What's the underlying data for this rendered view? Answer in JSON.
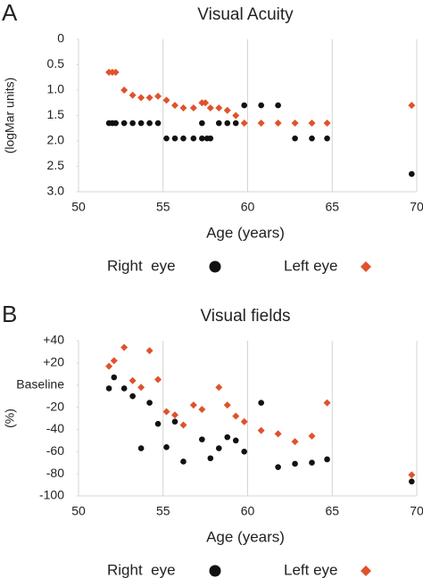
{
  "chart_data": [
    {
      "type": "scatter",
      "panel": "A",
      "title": "Visual Acuity",
      "x_label": "Age (years)",
      "y_label": "(logMar units)",
      "xlim": [
        50,
        70
      ],
      "xticks": [
        50,
        55,
        60,
        65,
        70
      ],
      "ylim": [
        0,
        3
      ],
      "y_inverted": true,
      "yticks": [
        0,
        0.5,
        {
          "value": 1,
          "label": "1.0"
        },
        1.5,
        {
          "value": 2,
          "label": "2.0"
        },
        2.5,
        {
          "value": 3,
          "label": "3.0"
        }
      ],
      "grid": "x",
      "series": [
        {
          "name": "Right  eye",
          "color": "#111111",
          "marker": "circle",
          "x": [
            51.8,
            52.0,
            52.2,
            52.7,
            53.2,
            53.7,
            54.2,
            54.7,
            55.2,
            55.7,
            56.2,
            56.8,
            57.3,
            57.3,
            57.6,
            57.8,
            58.3,
            58.8,
            59.3,
            59.8,
            60.8,
            61.8,
            62.8,
            63.8,
            64.7,
            69.7
          ],
          "values": [
            1.65,
            1.65,
            1.65,
            1.65,
            1.65,
            1.65,
            1.65,
            1.65,
            1.95,
            1.95,
            1.95,
            1.95,
            1.95,
            1.65,
            1.95,
            1.95,
            1.65,
            1.65,
            1.65,
            1.3,
            1.3,
            1.3,
            1.95,
            1.95,
            1.95,
            2.65
          ]
        },
        {
          "name": "Left eye",
          "color": "#e0522a",
          "marker": "diamond",
          "x": [
            51.8,
            52.0,
            52.2,
            52.7,
            53.2,
            53.7,
            54.2,
            54.7,
            55.2,
            55.7,
            56.2,
            56.8,
            57.3,
            57.5,
            57.8,
            58.3,
            58.8,
            59.3,
            59.8,
            60.8,
            61.8,
            62.8,
            63.8,
            64.7,
            69.7
          ],
          "values": [
            0.65,
            0.65,
            0.65,
            1.0,
            1.1,
            1.15,
            1.15,
            1.12,
            1.2,
            1.3,
            1.35,
            1.35,
            1.25,
            1.25,
            1.35,
            1.35,
            1.4,
            1.5,
            1.65,
            1.65,
            1.65,
            1.65,
            1.65,
            1.65,
            1.3
          ]
        }
      ]
    },
    {
      "type": "scatter",
      "panel": "B",
      "title": "Visual fields",
      "x_label": "Age (years)",
      "y_label": "(%)",
      "xlim": [
        50,
        70
      ],
      "xticks": [
        50,
        55,
        60,
        65,
        70
      ],
      "ylim": [
        -100,
        40
      ],
      "yticks": [
        {
          "value": 40,
          "label": "+40"
        },
        {
          "value": 20,
          "label": "+20"
        },
        {
          "value": 0,
          "label": "Baseline"
        },
        -20,
        -40,
        -60,
        -80,
        -100
      ],
      "grid": "x",
      "series": [
        {
          "name": "Right  eye",
          "color": "#111111",
          "marker": "circle",
          "x": [
            51.8,
            52.1,
            52.7,
            53.2,
            53.7,
            54.2,
            54.7,
            55.2,
            55.7,
            56.2,
            57.3,
            57.8,
            58.3,
            58.8,
            59.3,
            59.8,
            60.8,
            61.8,
            62.8,
            63.8,
            64.7,
            69.7
          ],
          "values": [
            -3,
            7,
            -3,
            -10,
            -57,
            -16,
            -35,
            -56,
            -33,
            -69,
            -49,
            -66,
            -57,
            -47,
            -50,
            -60,
            -16,
            -74,
            -71,
            -70,
            -67,
            -87
          ]
        },
        {
          "name": "Left eye",
          "color": "#e0522a",
          "marker": "diamond",
          "x": [
            51.8,
            52.1,
            52.7,
            53.2,
            53.7,
            54.2,
            54.7,
            55.2,
            55.7,
            56.2,
            56.8,
            57.3,
            58.3,
            58.8,
            59.3,
            59.8,
            60.8,
            61.8,
            62.8,
            63.8,
            64.7,
            69.7
          ],
          "values": [
            17,
            22,
            34,
            4,
            -2,
            31,
            5,
            -24,
            -27,
            -36,
            -18,
            -22,
            -2,
            -18,
            -28,
            -33,
            -41,
            -44,
            -51,
            -46,
            -16,
            -81
          ]
        }
      ]
    }
  ]
}
